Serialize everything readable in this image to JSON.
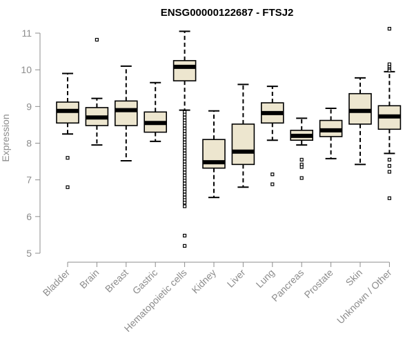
{
  "chart_data": {
    "type": "box",
    "title": "ENSG00000122687 - FTSJ2",
    "xlabel": "",
    "ylabel": "Expression",
    "ylim": [
      5,
      11
    ],
    "yticks": [
      5,
      6,
      7,
      8,
      9,
      10,
      11
    ],
    "grid": false,
    "colors": {
      "box_fill": "#ede6cf",
      "stroke": "#000000",
      "axis": "#8c8c8c"
    },
    "categories": [
      "Bladder",
      "Brain",
      "Breast",
      "Gastric",
      "Hematopoietic cells",
      "Kidney",
      "Liver",
      "Lung",
      "Pancreas",
      "Prostate",
      "Skin",
      "Unknown / Other"
    ],
    "boxes": [
      {
        "category": "Bladder",
        "whisker_low": 8.25,
        "q1": 8.55,
        "median": 8.88,
        "q3": 9.12,
        "whisker_high": 9.9,
        "outliers": [
          7.6,
          6.8
        ]
      },
      {
        "category": "Brain",
        "whisker_low": 7.95,
        "q1": 8.48,
        "median": 8.7,
        "q3": 8.97,
        "whisker_high": 9.22,
        "outliers": [
          10.82
        ]
      },
      {
        "category": "Breast",
        "whisker_low": 7.52,
        "q1": 8.48,
        "median": 8.9,
        "q3": 9.15,
        "whisker_high": 10.1,
        "outliers": []
      },
      {
        "category": "Gastric",
        "whisker_low": 8.05,
        "q1": 8.3,
        "median": 8.55,
        "q3": 8.85,
        "whisker_high": 9.65,
        "outliers": []
      },
      {
        "category": "Hematopoietic cells",
        "whisker_low": 8.9,
        "q1": 9.7,
        "median": 10.08,
        "q3": 10.25,
        "whisker_high": 11.05,
        "outliers": [
          8.85,
          8.78,
          8.7,
          8.62,
          8.55,
          8.48,
          8.4,
          8.33,
          8.25,
          8.18,
          8.1,
          8.02,
          7.95,
          7.88,
          7.8,
          7.72,
          7.65,
          7.58,
          7.5,
          7.42,
          7.35,
          7.28,
          7.2,
          7.12,
          7.05,
          6.98,
          6.9,
          6.82,
          6.75,
          6.68,
          6.6,
          6.52,
          6.45,
          6.38,
          6.28,
          5.48,
          5.2
        ]
      },
      {
        "category": "Kidney",
        "whisker_low": 6.52,
        "q1": 7.32,
        "median": 7.48,
        "q3": 8.1,
        "whisker_high": 8.88,
        "outliers": []
      },
      {
        "category": "Liver",
        "whisker_low": 6.8,
        "q1": 7.42,
        "median": 7.77,
        "q3": 8.52,
        "whisker_high": 9.6,
        "outliers": []
      },
      {
        "category": "Lung",
        "whisker_low": 8.08,
        "q1": 8.55,
        "median": 8.82,
        "q3": 9.1,
        "whisker_high": 9.55,
        "outliers": [
          7.15,
          6.88
        ]
      },
      {
        "category": "Pancreas",
        "whisker_low": 7.95,
        "q1": 8.08,
        "median": 8.2,
        "q3": 8.35,
        "whisker_high": 8.68,
        "outliers": [
          7.55,
          7.42,
          7.35,
          7.05
        ]
      },
      {
        "category": "Prostate",
        "whisker_low": 7.58,
        "q1": 8.18,
        "median": 8.35,
        "q3": 8.62,
        "whisker_high": 8.95,
        "outliers": []
      },
      {
        "category": "Skin",
        "whisker_low": 7.42,
        "q1": 8.52,
        "median": 8.88,
        "q3": 9.35,
        "whisker_high": 9.78,
        "outliers": []
      },
      {
        "category": "Unknown / Other",
        "whisker_low": 7.72,
        "q1": 8.38,
        "median": 8.73,
        "q3": 9.02,
        "whisker_high": 9.95,
        "outliers": [
          11.12,
          10.15,
          10.08,
          10.02,
          9.98,
          7.55,
          7.38,
          7.22,
          6.5
        ]
      }
    ]
  }
}
